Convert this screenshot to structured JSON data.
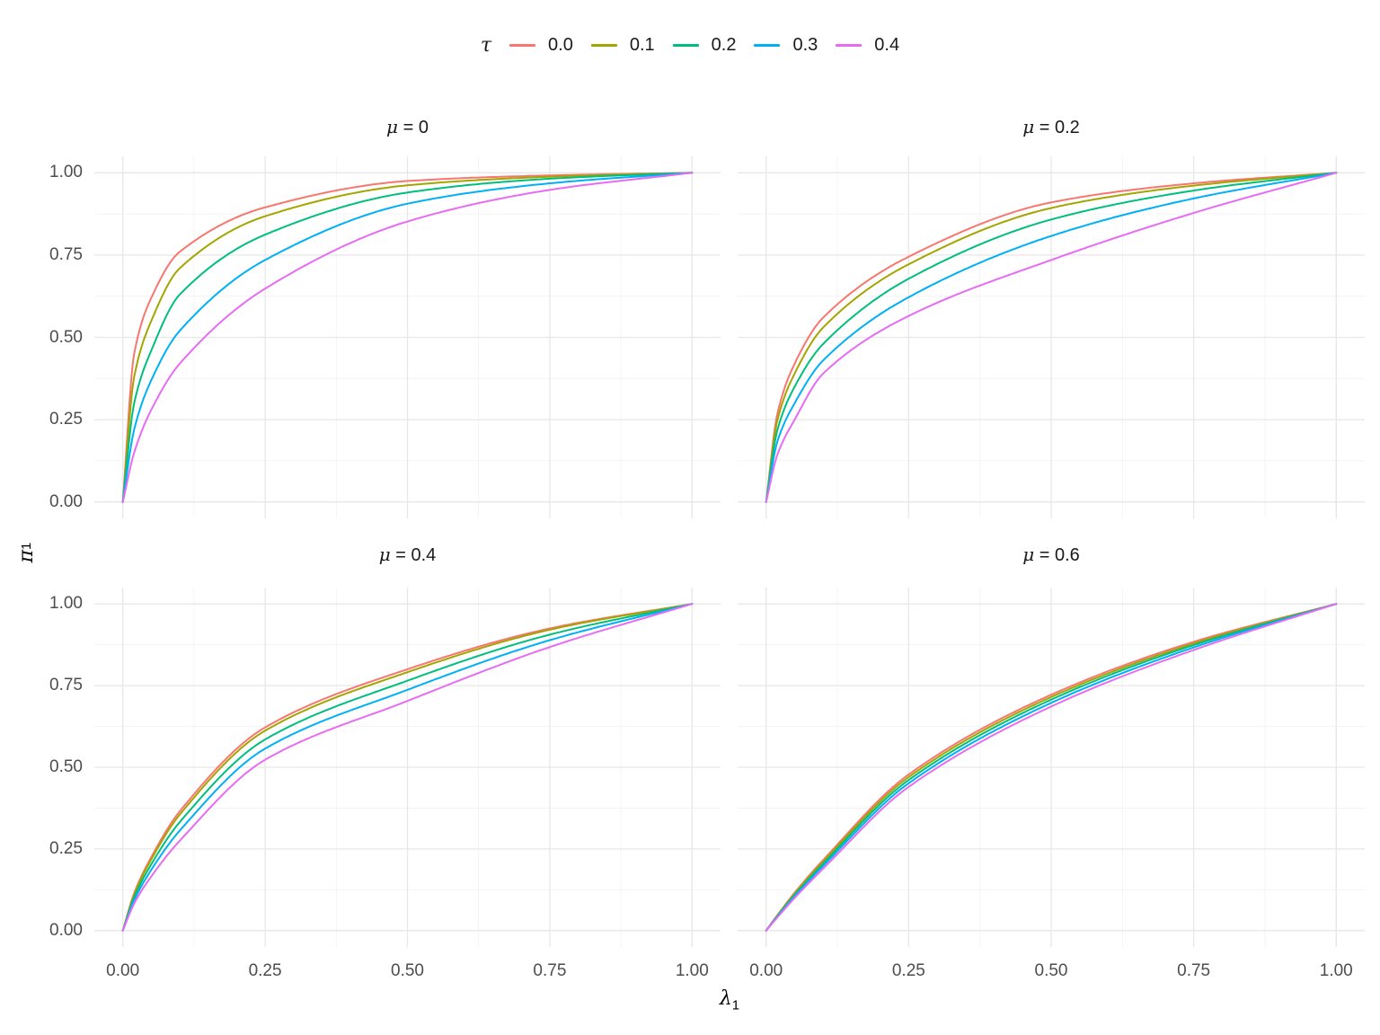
{
  "figure": {
    "background": "#FFFFFF",
    "tick_color": "#4D4D4D",
    "title_color": "#1A1A1A",
    "grid_major_color": "#E7E7E7",
    "grid_minor_color": "#F2F2F2",
    "legend": {
      "title": "τ",
      "entries": [
        {
          "label": "0.0",
          "color": "#F8766D"
        },
        {
          "label": "0.1",
          "color": "#A3A500"
        },
        {
          "label": "0.2",
          "color": "#00BF7D"
        },
        {
          "label": "0.3",
          "color": "#00B0F6"
        },
        {
          "label": "0.4",
          "color": "#E76BF3"
        }
      ]
    },
    "axes": {
      "x_title": "λ",
      "x_title_sub": "1",
      "y_title": "π",
      "y_title_sub": "1"
    }
  },
  "chart_data": {
    "type": "line",
    "title": "",
    "xlabel": "λ1",
    "ylabel": "π1",
    "legend_title": "τ",
    "legend_position": "top",
    "grid": true,
    "xlim": [
      0,
      1
    ],
    "ylim": [
      0,
      1
    ],
    "x_ticks": [
      0,
      0.25,
      0.5,
      0.75,
      1
    ],
    "y_ticks": [
      0,
      0.25,
      0.5,
      0.75,
      1
    ],
    "x_tick_labels": [
      "0.00",
      "0.25",
      "0.50",
      "0.75",
      "1.00"
    ],
    "y_tick_labels": [
      "0.00",
      "0.25",
      "0.50",
      "0.75",
      "1.00"
    ],
    "grid_major": [
      0,
      0.25,
      0.5,
      0.75,
      1
    ],
    "grid_minor": [
      0.125,
      0.375,
      0.625,
      0.875
    ],
    "x": [
      0,
      0.02,
      0.05,
      0.1,
      0.25,
      0.5,
      0.75,
      1
    ],
    "facets": [
      {
        "title": "μ = 0",
        "mu": 0,
        "series": [
          {
            "tau": "0.0",
            "color": "#F8766D",
            "y": [
              0,
              0.45,
              0.62,
              0.76,
              0.895,
              0.975,
              0.992,
              1
            ]
          },
          {
            "tau": "0.1",
            "color": "#A3A500",
            "y": [
              0,
              0.38,
              0.55,
              0.71,
              0.868,
              0.962,
              0.988,
              1
            ]
          },
          {
            "tau": "0.2",
            "color": "#00BF7D",
            "y": [
              0,
              0.3,
              0.46,
              0.63,
              0.812,
              0.94,
              0.982,
              1
            ]
          },
          {
            "tau": "0.3",
            "color": "#00B0F6",
            "y": [
              0,
              0.22,
              0.37,
              0.52,
              0.735,
              0.906,
              0.968,
              1
            ]
          },
          {
            "tau": "0.4",
            "color": "#E76BF3",
            "y": [
              0,
              0.15,
              0.28,
              0.42,
              0.648,
              0.852,
              0.948,
              1
            ]
          }
        ]
      },
      {
        "title": "μ = 0.2",
        "mu": 0.2,
        "series": [
          {
            "tau": "0.0",
            "color": "#F8766D",
            "y": [
              0,
              0.27,
              0.42,
              0.56,
              0.745,
              0.91,
              0.968,
              1
            ]
          },
          {
            "tau": "0.1",
            "color": "#A3A500",
            "y": [
              0,
              0.25,
              0.39,
              0.53,
              0.722,
              0.893,
              0.961,
              1
            ]
          },
          {
            "tau": "0.2",
            "color": "#00BF7D",
            "y": [
              0,
              0.22,
              0.35,
              0.48,
              0.678,
              0.858,
              0.946,
              1
            ]
          },
          {
            "tau": "0.3",
            "color": "#00B0F6",
            "y": [
              0,
              0.185,
              0.3,
              0.43,
              0.622,
              0.808,
              0.922,
              1
            ]
          },
          {
            "tau": "0.4",
            "color": "#E76BF3",
            "y": [
              0,
              0.145,
              0.25,
              0.39,
              0.565,
              0.735,
              0.878,
              1
            ]
          }
        ]
      },
      {
        "title": "μ = 0.4",
        "mu": 0.4,
        "series": [
          {
            "tau": "0.0",
            "color": "#F8766D",
            "y": [
              0,
              0.115,
              0.225,
              0.365,
              0.622,
              0.8,
              0.925,
              1
            ]
          },
          {
            "tau": "0.1",
            "color": "#A3A500",
            "y": [
              0,
              0.11,
              0.218,
              0.355,
              0.612,
              0.791,
              0.921,
              1
            ]
          },
          {
            "tau": "0.2",
            "color": "#00BF7D",
            "y": [
              0,
              0.102,
              0.203,
              0.332,
              0.585,
              0.765,
              0.906,
              1
            ]
          },
          {
            "tau": "0.3",
            "color": "#00B0F6",
            "y": [
              0,
              0.093,
              0.186,
              0.306,
              0.557,
              0.737,
              0.889,
              1
            ]
          },
          {
            "tau": "0.4",
            "color": "#E76BF3",
            "y": [
              0,
              0.083,
              0.166,
              0.275,
              0.523,
              0.703,
              0.868,
              1
            ]
          }
        ]
      },
      {
        "title": "μ = 0.6",
        "mu": 0.6,
        "series": [
          {
            "tau": "0.0",
            "color": "#F8766D",
            "y": [
              0,
              0.048,
              0.116,
              0.216,
              0.478,
              0.722,
              0.884,
              1
            ]
          },
          {
            "tau": "0.1",
            "color": "#A3A500",
            "y": [
              0,
              0.047,
              0.113,
              0.211,
              0.47,
              0.715,
              0.879,
              1
            ]
          },
          {
            "tau": "0.2",
            "color": "#00BF7D",
            "y": [
              0,
              0.045,
              0.109,
              0.205,
              0.461,
              0.707,
              0.874,
              1
            ]
          },
          {
            "tau": "0.3",
            "color": "#00B0F6",
            "y": [
              0,
              0.043,
              0.105,
              0.198,
              0.451,
              0.697,
              0.867,
              1
            ]
          },
          {
            "tau": "0.4",
            "color": "#E76BF3",
            "y": [
              0,
              0.041,
              0.1,
              0.19,
              0.44,
              0.686,
              0.859,
              1
            ]
          }
        ]
      }
    ]
  }
}
